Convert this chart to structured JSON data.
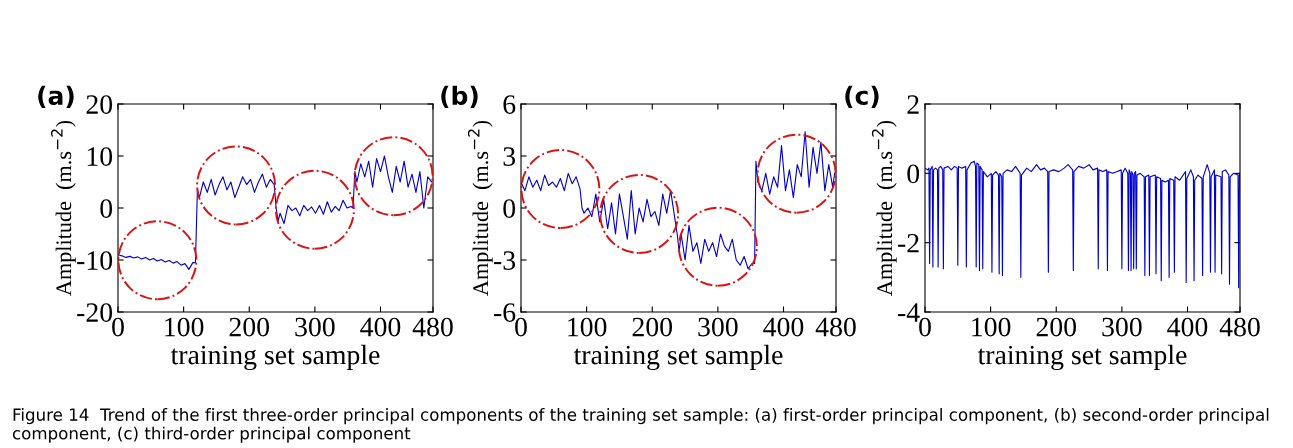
{
  "chart_data": [
    {
      "type": "line",
      "title": "(a)",
      "xlabel": "training set sample",
      "ylabel": "Amplitude  (m.s$^{−2}$)",
      "xlim": [
        0,
        480
      ],
      "xticks": [
        0,
        100,
        200,
        300,
        400,
        480
      ],
      "ylim": [
        -20,
        20
      ],
      "yticks": [
        -20,
        -10,
        0,
        10,
        20
      ],
      "grid": false,
      "legend": false,
      "annotations": [
        "Figure 14  Trend of the first three-order principal components of the training set sample: (a) first-order principal component, (b) second-order principal component, (c) third-order principal component"
      ],
      "series": [
        {
          "color": "#0000cc",
          "x": [
            0,
            6,
            12,
            18,
            24,
            30,
            36,
            42,
            48,
            54,
            60,
            66,
            72,
            78,
            84,
            90,
            96,
            102,
            108,
            114,
            118,
            121,
            124,
            130,
            136,
            142,
            148,
            154,
            160,
            166,
            172,
            178,
            184,
            190,
            196,
            202,
            208,
            214,
            220,
            226,
            232,
            238,
            241,
            244,
            247,
            253,
            259,
            265,
            271,
            277,
            283,
            289,
            295,
            301,
            307,
            313,
            319,
            325,
            331,
            337,
            343,
            349,
            355,
            358,
            361,
            364,
            370,
            376,
            382,
            388,
            394,
            400,
            406,
            412,
            418,
            424,
            430,
            436,
            442,
            448,
            454,
            460,
            466,
            472,
            478
          ],
          "values": [
            -9,
            -9.2,
            -9.5,
            -9.3,
            -9.6,
            -9.4,
            -9.8,
            -9.5,
            -10,
            -9.7,
            -10.2,
            -9.9,
            -10.4,
            -10.1,
            -10.6,
            -10.3,
            -11,
            -10.7,
            -11.8,
            -10.5,
            -10.5,
            3.5,
            2,
            5,
            3,
            5.5,
            2.5,
            4.5,
            6,
            3.5,
            5,
            2,
            4,
            6,
            4.5,
            5.5,
            3,
            5,
            6.5,
            4,
            5.5,
            4.5,
            0,
            -2.5,
            -1,
            -3,
            0.5,
            -0.5,
            0,
            -1.5,
            0.5,
            -0.5,
            0.2,
            -1,
            0.5,
            -1.2,
            1.2,
            -0.8,
            0.3,
            -0.5,
            1.5,
            0,
            0.3,
            0,
            7,
            5,
            8.5,
            6,
            9,
            4,
            9.5,
            7,
            10,
            6,
            3,
            8,
            5,
            9,
            4,
            6.5,
            3,
            7,
            0,
            6,
            5
          ]
        }
      ]
    },
    {
      "type": "line",
      "title": "(b)",
      "xlabel": "training set sample",
      "ylabel": "Amplitude  (m.s$^{−2}$)",
      "xlim": [
        0,
        480
      ],
      "xticks": [
        0,
        100,
        200,
        300,
        400,
        480
      ],
      "ylim": [
        -6,
        6
      ],
      "yticks": [
        -6,
        -3,
        0,
        3,
        6
      ],
      "grid": false,
      "legend": false,
      "series": [
        {
          "color": "#0000cc",
          "x": [
            0,
            6,
            12,
            18,
            24,
            30,
            36,
            42,
            48,
            54,
            60,
            66,
            72,
            78,
            84,
            90,
            93,
            96,
            102,
            108,
            114,
            120,
            126,
            132,
            138,
            144,
            150,
            156,
            162,
            168,
            174,
            180,
            186,
            192,
            198,
            204,
            210,
            216,
            222,
            228,
            234,
            238,
            241,
            244,
            250,
            256,
            262,
            268,
            274,
            280,
            286,
            292,
            298,
            304,
            310,
            316,
            322,
            328,
            334,
            340,
            346,
            352,
            356,
            358,
            361,
            367,
            373,
            379,
            385,
            391,
            397,
            403,
            409,
            415,
            421,
            427,
            433,
            439,
            445,
            451,
            457,
            463,
            469,
            475,
            478
          ],
          "values": [
            1.5,
            1,
            1.8,
            1.2,
            1.6,
            1,
            1.9,
            1.3,
            1.5,
            1.2,
            1.7,
            1,
            2,
            1.4,
            1.8,
            1.1,
            0,
            -0.3,
            0,
            -0.5,
            0.8,
            -0.8,
            0.5,
            -1.2,
            0.3,
            -1.5,
            0.8,
            -0.5,
            -1.8,
            1,
            -1.5,
            0,
            -0.8,
            0.5,
            -0.5,
            -0.2,
            -1,
            0.8,
            -0.3,
            1,
            -0.5,
            -1.5,
            -2.5,
            -1.5,
            -3,
            -1,
            -2.5,
            -2,
            -3.2,
            -1.8,
            -2.5,
            -2,
            -2.8,
            -1.5,
            -2.2,
            -2.5,
            -1.8,
            -3,
            -3.3,
            -2.8,
            -3.5,
            -3.2,
            -3.2,
            2.7,
            1.5,
            1,
            2,
            0.8,
            1.8,
            1.2,
            3.6,
            1,
            2.2,
            0.6,
            2.5,
            1.8,
            4.4,
            1.2,
            3.5,
            2,
            3.8,
            1,
            2.5,
            1.2,
            2
          ]
        }
      ]
    },
    {
      "type": "line",
      "title": "(c)",
      "xlabel": "training set sample",
      "ylabel": "Amplitude  (m.s$^{−2}$)",
      "xlim": [
        0,
        480
      ],
      "xticks": [
        0,
        100,
        200,
        300,
        400,
        480
      ],
      "ylim": [
        -4,
        2
      ],
      "yticks": [
        -4,
        -2,
        0,
        2
      ],
      "grid": false,
      "legend": false,
      "series": [
        {
          "color": "#0000cc",
          "x": [
            0,
            4,
            6,
            7,
            8,
            11,
            12,
            13,
            16,
            19,
            20,
            21,
            24,
            27,
            28,
            29,
            35,
            40,
            45,
            49,
            50,
            51,
            56,
            62,
            63,
            64,
            70,
            75,
            77,
            78,
            79,
            82,
            83,
            84,
            87,
            88,
            89,
            95,
            101,
            102,
            103,
            108,
            112,
            113,
            114,
            117,
            118,
            119,
            125,
            132,
            138,
            145,
            146,
            147,
            155,
            162,
            170,
            176,
            182,
            187,
            188,
            189,
            196,
            204,
            212,
            218,
            225,
            226,
            227,
            234,
            242,
            250,
            256,
            263,
            264,
            265,
            271,
            277,
            278,
            279,
            286,
            293,
            299,
            300,
            301,
            305,
            309,
            310,
            311,
            313,
            314,
            315,
            317,
            318,
            319,
            321,
            322,
            323,
            328,
            334,
            335,
            336,
            341,
            342,
            343,
            351,
            352,
            353,
            359,
            360,
            361,
            366,
            371,
            372,
            373,
            379,
            380,
            381,
            388,
            397,
            398,
            399,
            405,
            409,
            410,
            411,
            416,
            422,
            423,
            424,
            430,
            434,
            435,
            436,
            441,
            442,
            443,
            451,
            452,
            453,
            458,
            463,
            464,
            465,
            470,
            477,
            478,
            479
          ],
          "values": [
            0.15,
            0.1,
            0.15,
            -2.6,
            0.1,
            0.2,
            -2.7,
            0.1,
            0.15,
            0.1,
            -2.7,
            0.15,
            0.2,
            0.1,
            -2.75,
            0.15,
            0.2,
            0.1,
            0.2,
            0.15,
            -2.65,
            0.2,
            0.15,
            0.2,
            -2.7,
            0.1,
            0.3,
            0.35,
            0.2,
            -2.7,
            0.3,
            0.25,
            -2.8,
            0.2,
            0.1,
            -2.75,
            0.05,
            -0.1,
            0,
            -2.85,
            -0.05,
            0.05,
            -0.05,
            -2.9,
            0,
            -0.1,
            -2.95,
            0,
            0.1,
            0.05,
            0.2,
            0,
            -3,
            -0.05,
            0.15,
            0.05,
            0.25,
            0.1,
            0.15,
            0.05,
            -2.85,
            0.05,
            0.1,
            0.05,
            0.15,
            0.25,
            0.1,
            -2.8,
            0.05,
            0.2,
            0.15,
            0.25,
            0.1,
            0.15,
            -2.75,
            0.1,
            0.05,
            0.1,
            -2.8,
            0.05,
            0,
            0.05,
            0.1,
            -2.75,
            0,
            0.15,
            0,
            -2.8,
            0.1,
            0,
            -2.8,
            0.05,
            -0.05,
            -2.75,
            0,
            0.05,
            -2.75,
            -0.05,
            0,
            -0.1,
            -2.95,
            -0.1,
            -0.05,
            -2.95,
            -0.1,
            -0.05,
            -2.9,
            -0.1,
            -0.15,
            -3.1,
            -0.2,
            -0.25,
            -0.2,
            -3,
            -0.15,
            -0.2,
            -2.85,
            -0.1,
            -0.2,
            0.05,
            -3.15,
            -0.15,
            0.1,
            -0.1,
            -3.1,
            -0.2,
            -0.05,
            -0.15,
            -2.95,
            -0.1,
            0.25,
            0,
            -2.85,
            -0.1,
            0.1,
            -2.85,
            -0.05,
            -0.1,
            -2.9,
            0.05,
            0.1,
            -0.05,
            -3.2,
            -0.1,
            0,
            -0.05,
            -3.3,
            0
          ]
        }
      ]
    }
  ]
}
